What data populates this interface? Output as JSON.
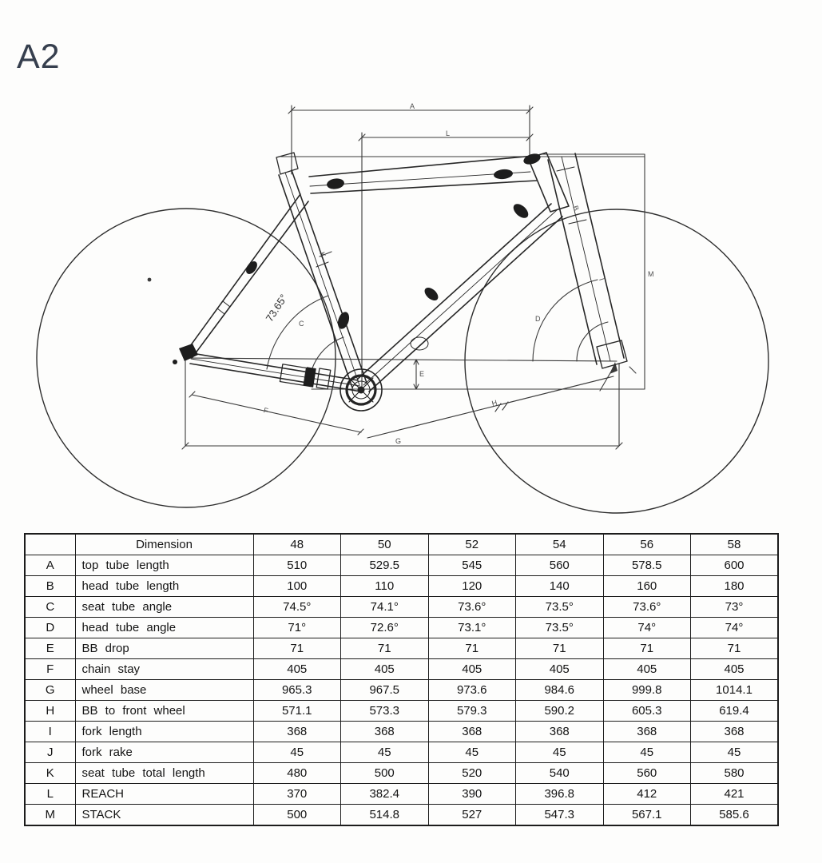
{
  "title": "A2",
  "diagram": {
    "angle_label": "73.65°",
    "labels": {
      "top_tube": "A",
      "head_tube": "B",
      "seat_angle": "C",
      "head_angle": "D",
      "bb_drop": "E",
      "chain_stay": "F",
      "wheel_base": "G",
      "bb_front": "H",
      "fork": "I",
      "seat_total": "K",
      "reach": "L",
      "stack": "M"
    }
  },
  "table": {
    "header": [
      "",
      "Dimension",
      "48",
      "50",
      "52",
      "54",
      "56",
      "58"
    ],
    "rows": [
      [
        "A",
        "top tube length",
        "510",
        "529.5",
        "545",
        "560",
        "578.5",
        "600"
      ],
      [
        "B",
        "head tube length",
        "100",
        "110",
        "120",
        "140",
        "160",
        "180"
      ],
      [
        "C",
        "seat tube angle",
        "74.5°",
        "74.1°",
        "73.6°",
        "73.5°",
        "73.6°",
        "73°"
      ],
      [
        "D",
        "head tube angle",
        "71°",
        "72.6°",
        "73.1°",
        "73.5°",
        "74°",
        "74°"
      ],
      [
        "E",
        "BB drop",
        "71",
        "71",
        "71",
        "71",
        "71",
        "71"
      ],
      [
        "F",
        "chain stay",
        "405",
        "405",
        "405",
        "405",
        "405",
        "405"
      ],
      [
        "G",
        "wheel base",
        "965.3",
        "967.5",
        "973.6",
        "984.6",
        "999.8",
        "1014.1"
      ],
      [
        "H",
        "BB to front wheel",
        "571.1",
        "573.3",
        "579.3",
        "590.2",
        "605.3",
        "619.4"
      ],
      [
        "I",
        "fork length",
        "368",
        "368",
        "368",
        "368",
        "368",
        "368"
      ],
      [
        "J",
        "fork rake",
        "45",
        "45",
        "45",
        "45",
        "45",
        "45"
      ],
      [
        "K",
        "seat tube total length",
        "480",
        "500",
        "520",
        "540",
        "560",
        "580"
      ],
      [
        "L",
        "REACH",
        "370",
        "382.4",
        "390",
        "396.8",
        "412",
        "421"
      ],
      [
        "M",
        "STACK",
        "500",
        "514.8",
        "527",
        "547.3",
        "567.1",
        "585.6"
      ]
    ]
  }
}
